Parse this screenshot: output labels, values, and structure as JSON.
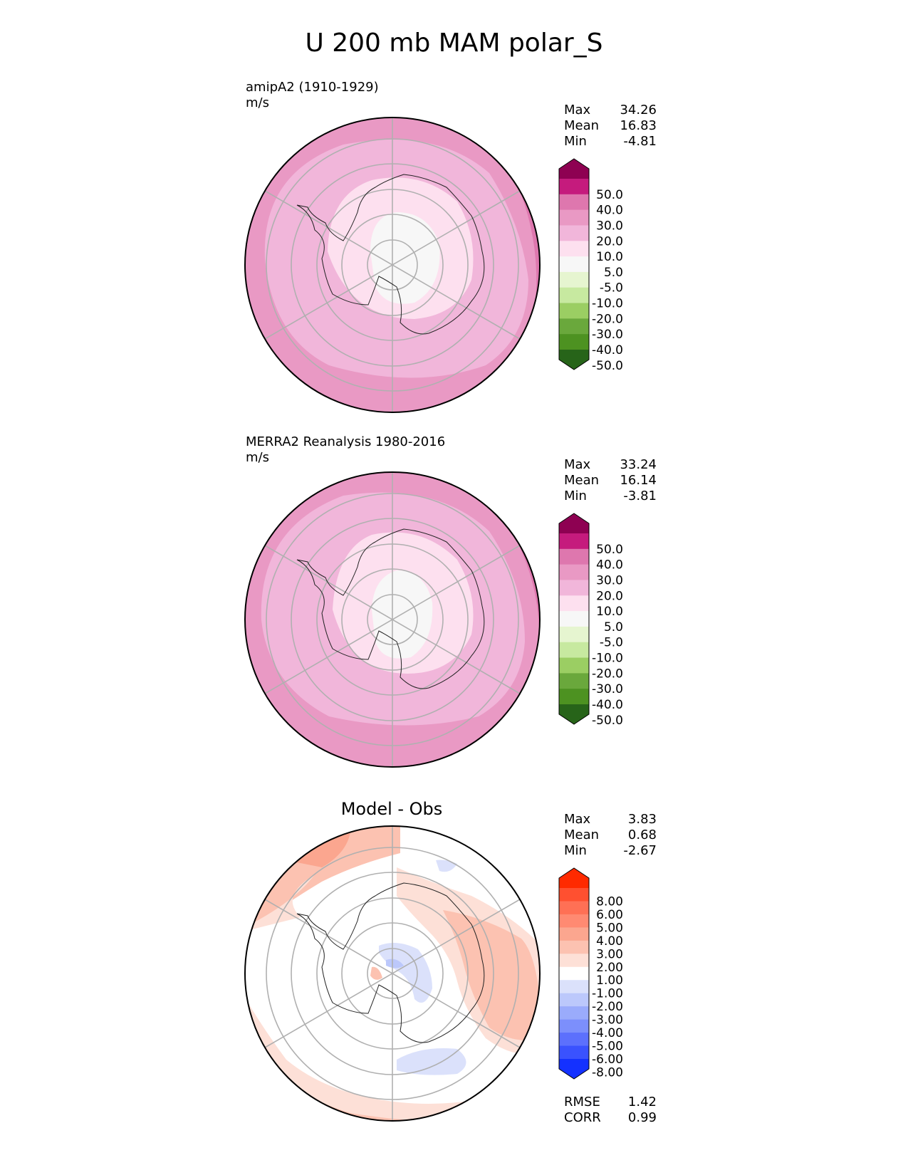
{
  "title": "U 200 mb MAM polar_S",
  "panels": [
    {
      "label": "amipA2 (1910-1929)\nm/s",
      "stats": [
        {
          "name": "Max",
          "value": "34.26"
        },
        {
          "name": "Mean",
          "value": "16.83"
        },
        {
          "name": "Min",
          "value": "-4.81"
        }
      ],
      "colorbar": {
        "labels": [
          "50.0",
          "40.0",
          "30.0",
          "20.0",
          "10.0",
          "5.0",
          "-5.0",
          "-10.0",
          "-20.0",
          "-30.0",
          "-40.0",
          "-50.0"
        ],
        "colors": [
          "#8e0152",
          "#c51b7d",
          "#de77ae",
          "#e999c4",
          "#f1b6da",
          "#fde0ef",
          "#f7f7f7",
          "#e6f5d0",
          "#c7e9a0",
          "#9bce63",
          "#6aa83c",
          "#4d9221",
          "#276419"
        ]
      }
    },
    {
      "label": "MERRA2 Reanalysis 1980-2016\nm/s",
      "stats": [
        {
          "name": "Max",
          "value": "33.24"
        },
        {
          "name": "Mean",
          "value": "16.14"
        },
        {
          "name": "Min",
          "value": "-3.81"
        }
      ],
      "colorbar": {
        "labels": [
          "50.0",
          "40.0",
          "30.0",
          "20.0",
          "10.0",
          "5.0",
          "-5.0",
          "-10.0",
          "-20.0",
          "-30.0",
          "-40.0",
          "-50.0"
        ],
        "colors": [
          "#8e0152",
          "#c51b7d",
          "#de77ae",
          "#e999c4",
          "#f1b6da",
          "#fde0ef",
          "#f7f7f7",
          "#e6f5d0",
          "#c7e9a0",
          "#9bce63",
          "#6aa83c",
          "#4d9221",
          "#276419"
        ]
      }
    },
    {
      "title": "Model - Obs",
      "stats": [
        {
          "name": "Max",
          "value": "3.83"
        },
        {
          "name": "Mean",
          "value": "0.68"
        },
        {
          "name": "Min",
          "value": "-2.67"
        }
      ],
      "colorbar": {
        "labels": [
          "8.00",
          "6.00",
          "5.00",
          "4.00",
          "3.00",
          "2.00",
          "1.00",
          "-1.00",
          "-2.00",
          "-3.00",
          "-4.00",
          "-5.00",
          "-6.00",
          "-8.00"
        ],
        "colors": [
          "#ff2a00",
          "#ff5030",
          "#ff7055",
          "#ff8a72",
          "#fba68f",
          "#fcc2b1",
          "#fde0d7",
          "#ffffff",
          "#dbe1fb",
          "#bcc8fb",
          "#9aabfb",
          "#7c8ffc",
          "#5c70fd",
          "#3a52fe",
          "#1431ff"
        ]
      },
      "extra_stats": [
        {
          "name": "RMSE",
          "value": "1.42"
        },
        {
          "name": "CORR",
          "value": "0.99"
        }
      ]
    }
  ]
}
